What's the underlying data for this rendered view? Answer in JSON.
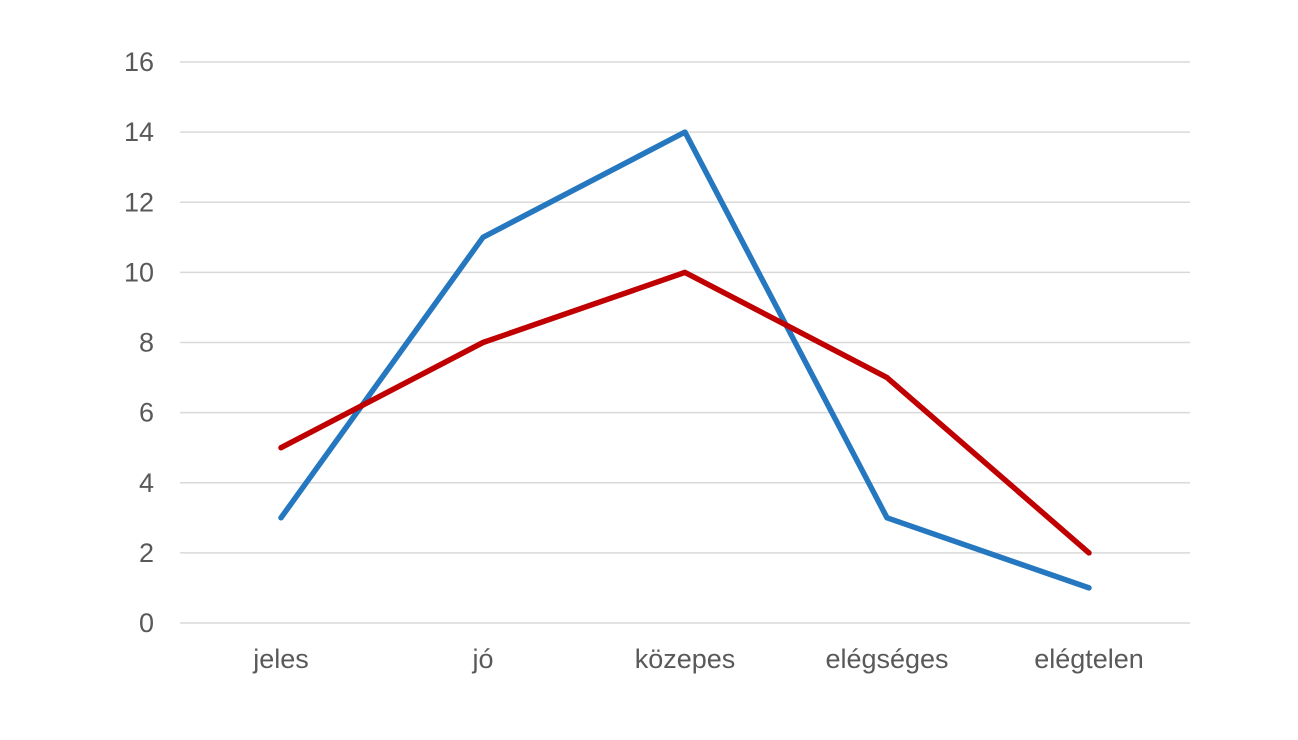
{
  "chart_data": {
    "type": "line",
    "title": "",
    "xlabel": "",
    "ylabel": "",
    "categories": [
      "jeles",
      "jó",
      "közepes",
      "elégséges",
      "elégtelen"
    ],
    "series": [
      {
        "name": "series-blue",
        "color": "#2577BF",
        "values": [
          3,
          11,
          14,
          3,
          1
        ]
      },
      {
        "name": "series-red",
        "color": "#C00000",
        "values": [
          5,
          8,
          10,
          7,
          2
        ]
      }
    ],
    "ylim": [
      0,
      16
    ],
    "y_ticks": [
      0,
      2,
      4,
      6,
      8,
      10,
      12,
      14,
      16
    ],
    "grid": true,
    "legend_position": "none",
    "gridline_color": "#D9D9D9",
    "tick_label_color": "#595959",
    "background_color": "#FFFFFF"
  }
}
